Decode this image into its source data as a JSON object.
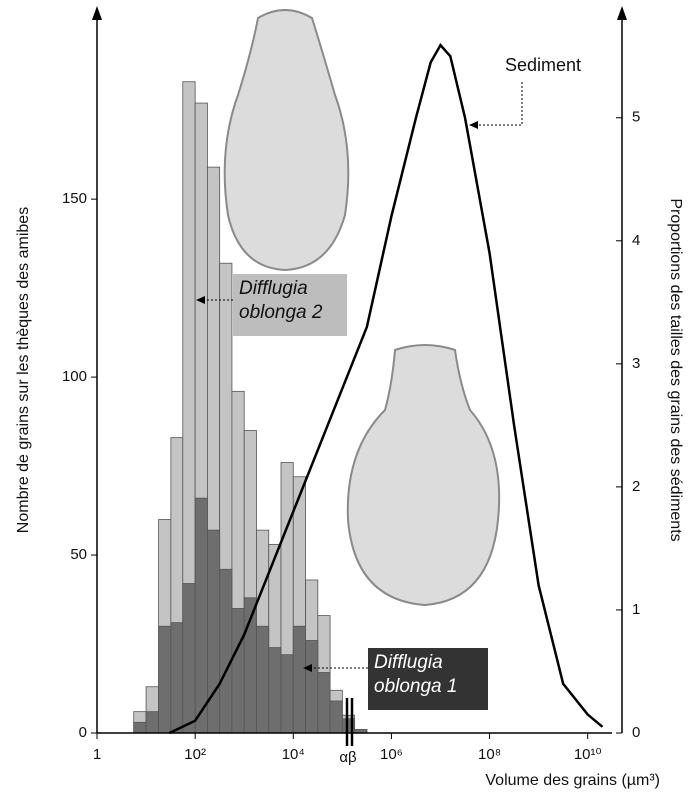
{
  "chart_data": {
    "type": "histogram",
    "x_label": "Volume des grains (µm³)",
    "y_label": "Nombre de grains sur les thèques des amibes",
    "y2_label": "Proportions des tailles des grains des sédiments",
    "xscale": "log",
    "xlim": [
      1,
      50000000000
    ],
    "xticks": [
      1,
      {
        "value": 100,
        "label": "10²"
      },
      {
        "value": 10000,
        "label": "10⁴"
      },
      {
        "value": 1000000,
        "label": "10⁶"
      },
      {
        "value": 100000000,
        "label": "10⁸"
      },
      {
        "value": 10000000000,
        "label": "10¹⁰"
      }
    ],
    "ylim": [
      0,
      195
    ],
    "yticks": [
      0,
      50,
      100,
      150
    ],
    "y2lim": [
      0,
      5.64
    ],
    "y2ticks": [
      0,
      1,
      2,
      3,
      4,
      5
    ],
    "annotation": "αβ",
    "bins": [
      5.6,
      10,
      18,
      32,
      56,
      100,
      178,
      316,
      562,
      1000,
      1778,
      3162,
      5623,
      10000,
      17783,
      31623,
      56234,
      100000,
      177828,
      316228
    ],
    "series": [
      {
        "name": "Difflugia oblonga 2",
        "type": "histogram",
        "color": "#c4c4c4",
        "values": [
          6,
          13,
          60,
          83,
          183,
          177,
          159,
          132,
          96,
          85,
          57,
          53,
          76,
          72,
          43,
          33,
          12,
          5,
          1
        ]
      },
      {
        "name": "Difflugia oblonga 1",
        "type": "histogram",
        "color": "#6e6e6e",
        "values": [
          3,
          6,
          30,
          31,
          42,
          66,
          57,
          46,
          35,
          38,
          30,
          24,
          22,
          30,
          26,
          17,
          9,
          4,
          1
        ]
      },
      {
        "name": "Sediment",
        "type": "line",
        "axis": "y2",
        "color": "#000000",
        "x": [
          30,
          100,
          316,
          1000,
          3162,
          10000,
          31623,
          100000,
          316228,
          1000000,
          3162278,
          6309573,
          10000000,
          15848932,
          31622777,
          100000000,
          316227766,
          1000000000,
          3162277660,
          10000000000,
          20000000000
        ],
        "values": [
          0,
          0.1,
          0.4,
          0.8,
          1.3,
          1.8,
          2.3,
          2.8,
          3.3,
          4.2,
          5.0,
          5.45,
          5.59,
          5.5,
          5.0,
          3.9,
          2.5,
          1.2,
          0.4,
          0.15,
          0.05
        ]
      }
    ]
  }
}
